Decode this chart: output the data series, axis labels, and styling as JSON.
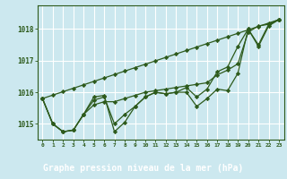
{
  "xlabel": "Graphe pression niveau de la mer (hPa)",
  "bg_color": "#cce8ef",
  "label_bg": "#2d6a2d",
  "grid_color": "#ffffff",
  "line_color": "#2d5a1b",
  "x": [
    0,
    1,
    2,
    3,
    4,
    5,
    6,
    7,
    8,
    9,
    10,
    11,
    12,
    13,
    14,
    15,
    16,
    17,
    18,
    19,
    20,
    21,
    22,
    23
  ],
  "series": [
    [
      1015.8,
      1015.0,
      1014.75,
      1014.8,
      1015.3,
      1015.75,
      1015.85,
      1014.75,
      1015.05,
      1015.5,
      1015.8,
      1016.0,
      1015.95,
      1016.0,
      1016.0,
      1015.55,
      1015.8,
      1016.1,
      1016.05,
      1016.6,
      1018.0,
      1017.45,
      1018.1,
      1018.3
    ],
    [
      1015.8,
      1015.0,
      1014.75,
      1014.8,
      1015.3,
      1015.75,
      1015.85,
      1015.0,
      1015.3,
      1015.55,
      1015.85,
      1016.0,
      1015.95,
      1016.0,
      1016.15,
      1015.85,
      1016.1,
      1016.65,
      1016.8,
      1017.45,
      1018.0,
      1018.1,
      1018.15,
      1018.3
    ],
    [
      1015.8,
      1015.0,
      1014.75,
      1014.8,
      1015.3,
      1015.75,
      1015.85,
      1015.0,
      1015.3,
      1015.55,
      1015.85,
      1016.0,
      1015.95,
      1016.0,
      1016.15,
      1015.85,
      1016.1,
      1016.65,
      1016.8,
      1017.45,
      1018.0,
      1017.5,
      1018.15,
      1018.3
    ],
    [
      1015.8,
      1015.0,
      1014.75,
      1014.8,
      1015.3,
      1015.75,
      1015.85,
      1015.0,
      1015.3,
      1015.55,
      1015.85,
      1016.0,
      1015.95,
      1016.0,
      1016.15,
      1015.85,
      1016.1,
      1016.65,
      1016.8,
      1017.45,
      1018.0,
      1018.1,
      1018.15,
      1018.3
    ]
  ],
  "wiggly_series": [
    1015.8,
    1015.0,
    1014.75,
    1014.8,
    1015.3,
    1015.75,
    1015.85,
    1014.75,
    1015.05,
    1015.5,
    1015.8,
    1016.0,
    1015.95,
    1016.0,
    1016.15,
    1015.55,
    1015.8,
    1016.6,
    1016.05,
    1016.6,
    1018.0,
    1017.45,
    1018.1,
    1018.3
  ],
  "ylim": [
    1014.5,
    1018.75
  ],
  "yticks": [
    1015,
    1016,
    1017,
    1018
  ],
  "xlim": [
    -0.5,
    23.5
  ],
  "xlabel_fontsize": 7,
  "tick_fontsize": 6
}
